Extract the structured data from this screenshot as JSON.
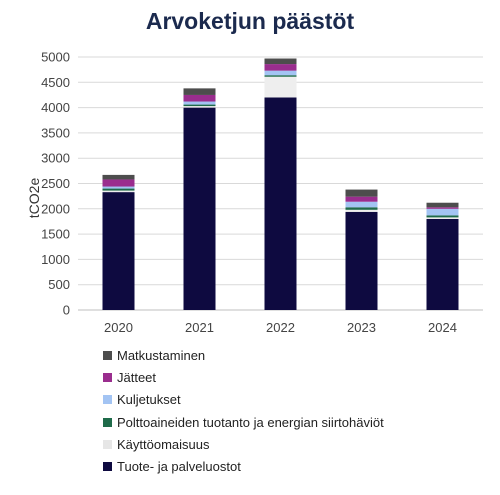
{
  "chart_data": {
    "type": "bar",
    "stacked": true,
    "title": "Arvoketjun päästöt",
    "xlabel": "",
    "ylabel": "tCO2e",
    "ylim": [
      0,
      5000
    ],
    "yticks": [
      0,
      500,
      1000,
      1500,
      2000,
      2500,
      3000,
      3500,
      4000,
      4500,
      5000
    ],
    "categories": [
      "2020",
      "2021",
      "2022",
      "2023",
      "2024"
    ],
    "grid": true,
    "legend_position": "bottom",
    "series": [
      {
        "name": "Tuote- ja palveluostot",
        "color": "#0e0a40",
        "values": [
          2330,
          4000,
          4200,
          1940,
          1800
        ]
      },
      {
        "name": "Käyttöomaisuus",
        "color": "#eeeeee",
        "values": [
          30,
          30,
          410,
          40,
          30
        ]
      },
      {
        "name": "Polttoaineiden tuotanto ja energian siirtohäviöt",
        "color": "#1f6b4a",
        "values": [
          40,
          30,
          30,
          50,
          40
        ]
      },
      {
        "name": "Kuljetukset",
        "color": "#a3c4f3",
        "values": [
          40,
          60,
          90,
          110,
          130
        ]
      },
      {
        "name": "Jätteet",
        "color": "#9a2d8e",
        "values": [
          140,
          130,
          130,
          100,
          30
        ]
      },
      {
        "name": "Matkustaminen",
        "color": "#4d4d4d",
        "values": [
          90,
          130,
          110,
          140,
          90
        ]
      }
    ]
  }
}
